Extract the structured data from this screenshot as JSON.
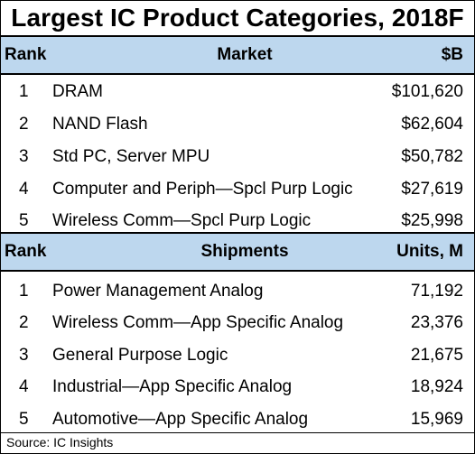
{
  "chart_data": {
    "type": "table",
    "title": "Largest IC Product Categories, 2018F",
    "tables": [
      {
        "columns": [
          "Rank",
          "Market",
          "$B"
        ],
        "rows": [
          [
            "1",
            "DRAM",
            "$101,620"
          ],
          [
            "2",
            "NAND Flash",
            "$62,604"
          ],
          [
            "3",
            "Std PC, Server MPU",
            "$50,782"
          ],
          [
            "4",
            "Computer and Periph—Spcl Purp Logic",
            "$27,619"
          ],
          [
            "5",
            "Wireless Comm—Spcl Purp Logic",
            "$25,998"
          ]
        ]
      },
      {
        "columns": [
          "Rank",
          "Shipments",
          "Units, M"
        ],
        "rows": [
          [
            "1",
            "Power Management Analog",
            "71,192"
          ],
          [
            "2",
            "Wireless Comm—App Specific Analog",
            "23,376"
          ],
          [
            "3",
            "General Purpose Logic",
            "21,675"
          ],
          [
            "4",
            "Industrial—App Specific Analog",
            "18,924"
          ],
          [
            "5",
            "Automotive—App Specific Analog",
            "15,969"
          ]
        ]
      }
    ],
    "source": "Source:  IC Insights"
  },
  "colors": {
    "header_bg": "#bdd7ee",
    "text": "#000000",
    "border": "#000000"
  }
}
